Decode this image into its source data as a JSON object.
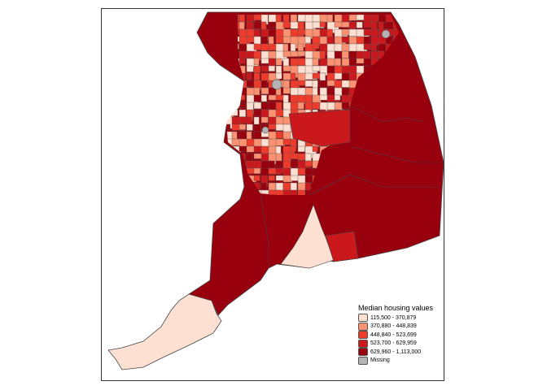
{
  "legend": {
    "title": "Median housing values",
    "items": [
      {
        "label": "115,500 - 370,879",
        "color": "#FEE0D2"
      },
      {
        "label": "370,880 - 448,839",
        "color": "#FC9272"
      },
      {
        "label": "448,840 - 523,699",
        "color": "#EF3B2C"
      },
      {
        "label": "523,700 - 629,959",
        "color": "#CB181D"
      },
      {
        "label": "629,960 - 1,113,000",
        "color": "#99000D"
      },
      {
        "label": "Missing",
        "color": "#B3B3B3"
      }
    ]
  }
}
